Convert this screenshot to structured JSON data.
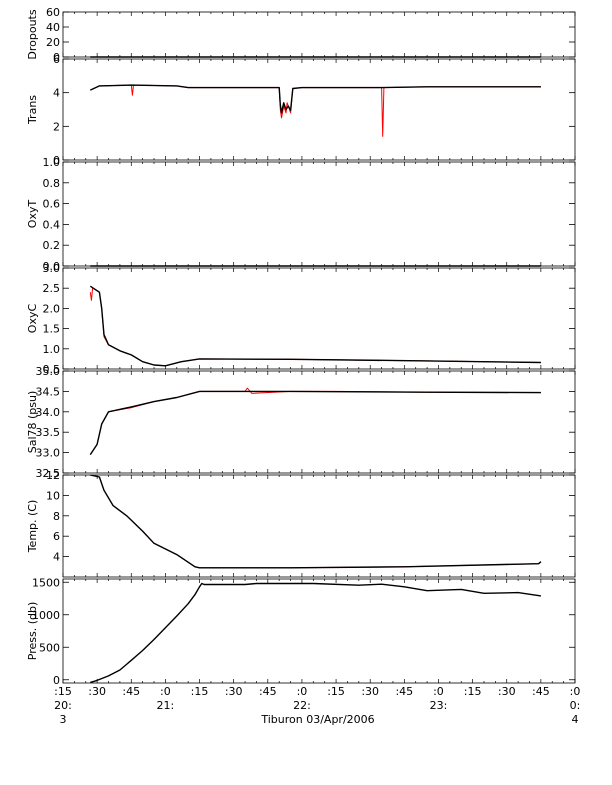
{
  "chart_data": {
    "type": "line",
    "footer_label": "Tiburon 03/Apr/2006",
    "x_ticks": [
      {
        "label": ":15",
        "sub1": "20:",
        "sub2": "3"
      },
      {
        "label": ":30",
        "sub1": "",
        "sub2": ""
      },
      {
        "label": ":45",
        "sub1": "",
        "sub2": ""
      },
      {
        "label": ":0",
        "sub1": "21:",
        "sub2": ""
      },
      {
        "label": ":15",
        "sub1": "",
        "sub2": ""
      },
      {
        "label": ":30",
        "sub1": "",
        "sub2": ""
      },
      {
        "label": ":45",
        "sub1": "",
        "sub2": ""
      },
      {
        "label": ":0",
        "sub1": "22:",
        "sub2": ""
      },
      {
        "label": ":15",
        "sub1": "",
        "sub2": ""
      },
      {
        "label": ":30",
        "sub1": "",
        "sub2": ""
      },
      {
        "label": ":45",
        "sub1": "",
        "sub2": ""
      },
      {
        "label": ":0",
        "sub1": "23:",
        "sub2": ""
      },
      {
        "label": ":15",
        "sub1": "",
        "sub2": ""
      },
      {
        "label": ":30",
        "sub1": "",
        "sub2": ""
      },
      {
        "label": ":45",
        "sub1": "",
        "sub2": ""
      },
      {
        "label": ":0",
        "sub1": "0:",
        "sub2": "4"
      }
    ],
    "x_range_minutes_after_2015": [
      0,
      225
    ],
    "panels": [
      {
        "id": "dropouts",
        "ylabel": "Dropouts",
        "ylim": [
          0,
          60
        ],
        "ticks": [
          {
            "v": 0,
            "label": "0"
          },
          {
            "v": 20,
            "label": "20"
          },
          {
            "v": 40,
            "label": "40"
          },
          {
            "v": 60,
            "label": "60"
          }
        ],
        "series": [
          {
            "color": "#000000",
            "points": [
              [
                12,
                0
              ],
              [
                210,
                0
              ]
            ]
          }
        ]
      },
      {
        "id": "trans",
        "ylabel": "Trans",
        "ylim": [
          0,
          6
        ],
        "ticks": [
          {
            "v": 0,
            "label": "0"
          },
          {
            "v": 2,
            "label": "2"
          },
          {
            "v": 4,
            "label": "4"
          },
          {
            "v": 6,
            "label": "6"
          }
        ],
        "series": [
          {
            "color": "#ff0000",
            "points": [
              [
                12,
                4.15
              ],
              [
                16,
                4.4
              ],
              [
                30,
                4.45
              ],
              [
                30.5,
                3.85
              ],
              [
                31,
                4.45
              ],
              [
                50,
                4.4
              ],
              [
                55,
                4.3
              ],
              [
                95,
                4.3
              ],
              [
                95.5,
                3.0
              ],
              [
                96,
                2.5
              ],
              [
                97,
                3.2
              ],
              [
                98,
                2.8
              ],
              [
                98.5,
                3.4
              ],
              [
                99,
                3.2
              ],
              [
                100,
                2.8
              ],
              [
                101,
                4.25
              ],
              [
                105,
                4.3
              ],
              [
                140,
                4.3
              ],
              [
                140.5,
                1.4
              ],
              [
                141,
                4.3
              ],
              [
                160,
                4.35
              ],
              [
                210,
                4.35
              ]
            ]
          },
          {
            "color": "#000000",
            "points": [
              [
                12,
                4.15
              ],
              [
                16,
                4.4
              ],
              [
                30,
                4.45
              ],
              [
                50,
                4.4
              ],
              [
                55,
                4.3
              ],
              [
                95,
                4.3
              ],
              [
                95.5,
                3.3
              ],
              [
                96,
                2.8
              ],
              [
                97,
                3.4
              ],
              [
                98,
                3.0
              ],
              [
                99,
                3.2
              ],
              [
                100,
                2.95
              ],
              [
                101,
                4.25
              ],
              [
                105,
                4.3
              ],
              [
                140,
                4.3
              ],
              [
                160,
                4.35
              ],
              [
                210,
                4.35
              ]
            ]
          }
        ]
      },
      {
        "id": "oxyt",
        "ylabel": "OxyT",
        "ylim": [
          0,
          1
        ],
        "ticks": [
          {
            "v": 0,
            "label": "0.0"
          },
          {
            "v": 0.2,
            "label": "0.2"
          },
          {
            "v": 0.4,
            "label": "0.4"
          },
          {
            "v": 0.6,
            "label": "0.6"
          },
          {
            "v": 0.8,
            "label": "0.8"
          },
          {
            "v": 1.0,
            "label": "1.0"
          }
        ],
        "series": [
          {
            "color": "#000000",
            "points": [
              [
                12,
                0
              ],
              [
                210,
                0
              ]
            ]
          }
        ]
      },
      {
        "id": "oxyc",
        "ylabel": "OxyC",
        "ylim": [
          0.5,
          3.0
        ],
        "ticks": [
          {
            "v": 0.5,
            "label": "0.5"
          },
          {
            "v": 1.0,
            "label": "1.0"
          },
          {
            "v": 1.5,
            "label": "1.5"
          },
          {
            "v": 2.0,
            "label": "2.0"
          },
          {
            "v": 2.5,
            "label": "2.5"
          },
          {
            "v": 3.0,
            "label": "3.0"
          }
        ],
        "series": [
          {
            "color": "#ff0000",
            "points": [
              [
                12,
                2.4
              ],
              [
                12.5,
                2.2
              ],
              [
                13,
                2.5
              ],
              [
                16,
                2.4
              ],
              [
                17,
                2.0
              ],
              [
                18,
                1.3
              ],
              [
                20,
                1.1
              ],
              [
                25,
                0.95
              ],
              [
                30,
                0.85
              ],
              [
                35,
                0.68
              ],
              [
                40,
                0.6
              ],
              [
                45,
                0.58
              ],
              [
                52,
                0.68
              ],
              [
                60,
                0.75
              ],
              [
                100,
                0.74
              ],
              [
                160,
                0.7
              ],
              [
                210,
                0.66
              ]
            ]
          },
          {
            "color": "#000000",
            "points": [
              [
                12,
                2.55
              ],
              [
                16,
                2.4
              ],
              [
                17,
                2.0
              ],
              [
                18,
                1.35
              ],
              [
                20,
                1.1
              ],
              [
                25,
                0.95
              ],
              [
                30,
                0.85
              ],
              [
                35,
                0.68
              ],
              [
                40,
                0.6
              ],
              [
                45,
                0.58
              ],
              [
                52,
                0.68
              ],
              [
                60,
                0.75
              ],
              [
                100,
                0.74
              ],
              [
                160,
                0.7
              ],
              [
                210,
                0.66
              ]
            ]
          }
        ]
      },
      {
        "id": "sal",
        "ylabel": "Sal78 (psu)",
        "ylim": [
          32.5,
          35.0
        ],
        "ticks": [
          {
            "v": 32.5,
            "label": "32.5"
          },
          {
            "v": 33.0,
            "label": "33.0"
          },
          {
            "v": 33.5,
            "label": "33.5"
          },
          {
            "v": 34.0,
            "label": "34.0"
          },
          {
            "v": 34.5,
            "label": "34.5"
          },
          {
            "v": 35.0,
            "label": "35.0"
          }
        ],
        "series": [
          {
            "color": "#ff0000",
            "points": [
              [
                12,
                32.95
              ],
              [
                15,
                33.2
              ],
              [
                17,
                33.7
              ],
              [
                20,
                34.0
              ],
              [
                30,
                34.1
              ],
              [
                40,
                34.25
              ],
              [
                50,
                34.35
              ],
              [
                60,
                34.5
              ],
              [
                80,
                34.5
              ],
              [
                81,
                34.58
              ],
              [
                83,
                34.45
              ],
              [
                100,
                34.5
              ],
              [
                120,
                34.5
              ],
              [
                160,
                34.48
              ],
              [
                210,
                34.47
              ]
            ]
          },
          {
            "color": "#000000",
            "points": [
              [
                12,
                32.95
              ],
              [
                15,
                33.2
              ],
              [
                17,
                33.7
              ],
              [
                20,
                34.0
              ],
              [
                30,
                34.12
              ],
              [
                40,
                34.25
              ],
              [
                50,
                34.35
              ],
              [
                60,
                34.5
              ],
              [
                100,
                34.5
              ],
              [
                160,
                34.48
              ],
              [
                210,
                34.47
              ]
            ]
          }
        ]
      },
      {
        "id": "temp",
        "ylabel": "Temp. (C)",
        "ylim": [
          2,
          12
        ],
        "ticks": [
          {
            "v": 4,
            "label": "4"
          },
          {
            "v": 6,
            "label": "6"
          },
          {
            "v": 8,
            "label": "8"
          },
          {
            "v": 10,
            "label": "10"
          },
          {
            "v": 12,
            "label": "12"
          }
        ],
        "series": [
          {
            "color": "#ff0000",
            "points": [
              [
                12,
                12.0
              ],
              [
                16,
                11.8
              ],
              [
                18,
                10.5
              ],
              [
                22,
                9.0
              ],
              [
                28,
                8.0
              ],
              [
                35,
                6.5
              ],
              [
                40,
                5.3
              ],
              [
                50,
                4.2
              ],
              [
                58,
                3.0
              ],
              [
                60,
                2.9
              ],
              [
                100,
                2.9
              ],
              [
                150,
                3.0
              ],
              [
                209,
                3.3
              ],
              [
                210,
                3.5
              ]
            ]
          },
          {
            "color": "#000000",
            "points": [
              [
                12,
                12.0
              ],
              [
                16,
                11.8
              ],
              [
                18,
                10.5
              ],
              [
                22,
                9.0
              ],
              [
                28,
                8.0
              ],
              [
                35,
                6.5
              ],
              [
                40,
                5.3
              ],
              [
                50,
                4.2
              ],
              [
                58,
                3.0
              ],
              [
                60,
                2.9
              ],
              [
                100,
                2.9
              ],
              [
                150,
                3.0
              ],
              [
                209,
                3.3
              ],
              [
                210,
                3.5
              ]
            ]
          }
        ]
      },
      {
        "id": "press",
        "ylabel": "Press. (db)",
        "ylim": [
          -50,
          1550
        ],
        "ticks": [
          {
            "v": 0,
            "label": "0"
          },
          {
            "v": 500,
            "label": "500"
          },
          {
            "v": 1000,
            "label": "1000"
          },
          {
            "v": 1500,
            "label": "1500"
          }
        ],
        "series": [
          {
            "color": "#000000",
            "points": [
              [
                12,
                -40
              ],
              [
                15,
                -10
              ],
              [
                20,
                60
              ],
              [
                25,
                150
              ],
              [
                30,
                300
              ],
              [
                35,
                450
              ],
              [
                40,
                620
              ],
              [
                45,
                800
              ],
              [
                50,
                980
              ],
              [
                55,
                1170
              ],
              [
                58,
                1310
              ],
              [
                60,
                1430
              ],
              [
                61,
                1480
              ],
              [
                62,
                1465
              ],
              [
                80,
                1465
              ],
              [
                85,
                1480
              ],
              [
                110,
                1480
              ],
              [
                130,
                1455
              ],
              [
                140,
                1470
              ],
              [
                150,
                1430
              ],
              [
                160,
                1370
              ],
              [
                175,
                1390
              ],
              [
                185,
                1330
              ],
              [
                200,
                1340
              ],
              [
                210,
                1290
              ]
            ]
          }
        ]
      }
    ]
  }
}
